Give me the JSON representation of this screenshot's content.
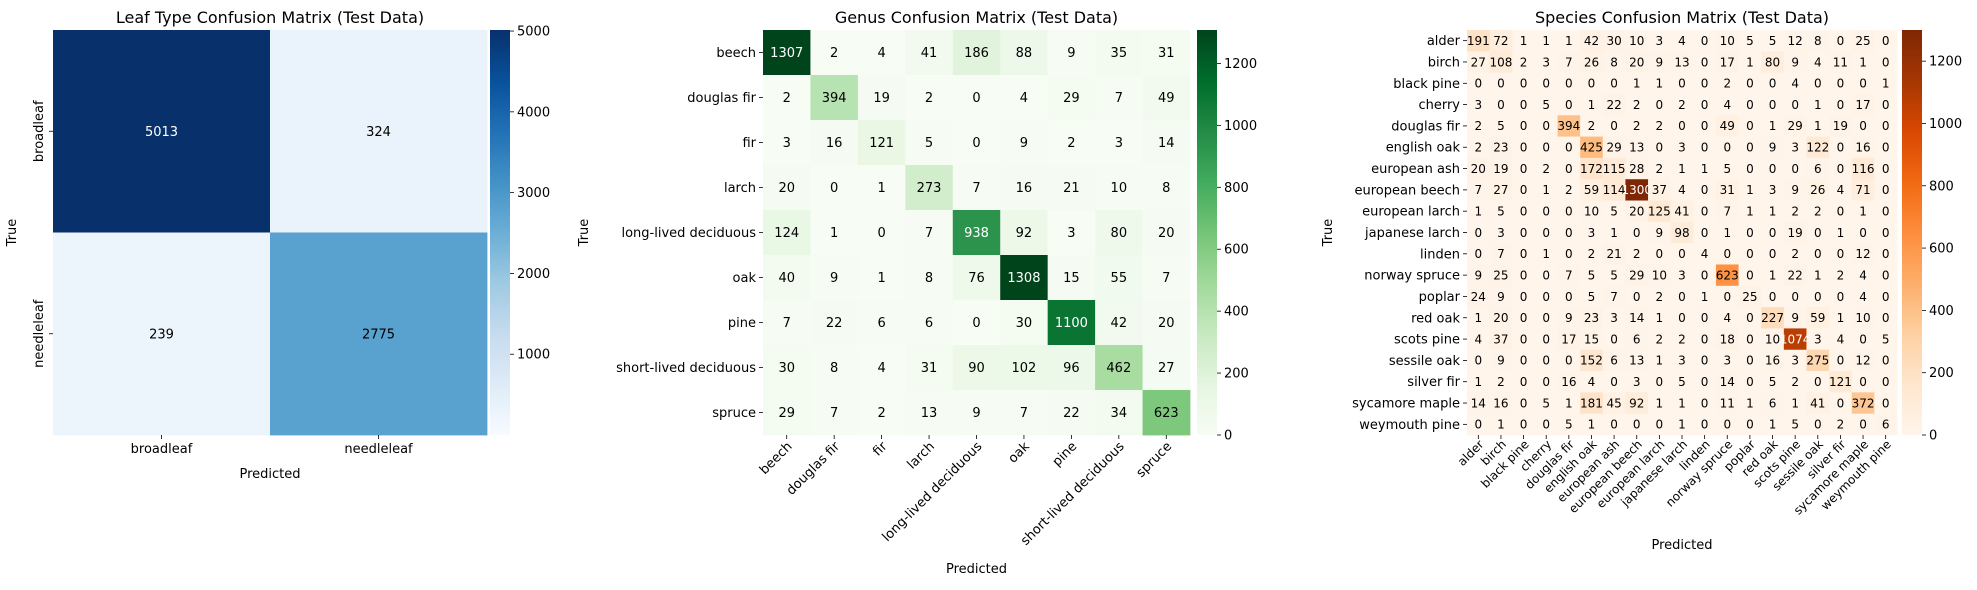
{
  "chart_data": [
    {
      "type": "heatmap",
      "title": "Leaf Type Confusion Matrix (Test Data)",
      "xlabel": "Predicted",
      "ylabel": "True",
      "colormap": "Blues",
      "colors": [
        "#f7fbff",
        "#deebf7",
        "#c6dbef",
        "#9ecae1",
        "#6baed6",
        "#4292c6",
        "#2171b5",
        "#08519c",
        "#08306b"
      ],
      "labels": [
        "broadleaf",
        "needleleaf"
      ],
      "vmin": 0,
      "vmax": 5013,
      "colorbar_ticks": [
        1000,
        2000,
        3000,
        4000,
        5000
      ],
      "matrix": [
        [
          5013,
          324
        ],
        [
          239,
          2775
        ]
      ]
    },
    {
      "type": "heatmap",
      "title": "Genus Confusion Matrix (Test Data)",
      "xlabel": "Predicted",
      "ylabel": "True",
      "colormap": "Greens",
      "colors": [
        "#f7fcf5",
        "#e5f5e0",
        "#c7e9c0",
        "#a1d99b",
        "#74c476",
        "#41ab5d",
        "#238b45",
        "#006d2c",
        "#00441b"
      ],
      "labels": [
        "beech",
        "douglas fir",
        "fir",
        "larch",
        "long-lived deciduous",
        "oak",
        "pine",
        "short-lived deciduous",
        "spruce"
      ],
      "vmin": 0,
      "vmax": 1308,
      "colorbar_ticks": [
        0,
        200,
        400,
        600,
        800,
        1000,
        1200
      ],
      "matrix": [
        [
          1307,
          2,
          4,
          41,
          186,
          88,
          9,
          35,
          31
        ],
        [
          2,
          394,
          19,
          2,
          0,
          4,
          29,
          7,
          49
        ],
        [
          3,
          16,
          121,
          5,
          0,
          9,
          2,
          3,
          14
        ],
        [
          20,
          0,
          1,
          273,
          7,
          16,
          21,
          10,
          8
        ],
        [
          124,
          1,
          0,
          7,
          938,
          92,
          3,
          80,
          20
        ],
        [
          40,
          9,
          1,
          8,
          76,
          1308,
          15,
          55,
          7
        ],
        [
          7,
          22,
          6,
          6,
          0,
          30,
          1100,
          42,
          20
        ],
        [
          30,
          8,
          4,
          31,
          90,
          102,
          96,
          462,
          27
        ],
        [
          29,
          7,
          2,
          13,
          9,
          7,
          22,
          34,
          623
        ]
      ]
    },
    {
      "type": "heatmap",
      "title": "Species Confusion Matrix (Test Data)",
      "xlabel": "Predicted",
      "ylabel": "True",
      "colormap": "Oranges",
      "colors": [
        "#fff5eb",
        "#fee6ce",
        "#fdd0a2",
        "#fdae6b",
        "#fd8d3c",
        "#f16913",
        "#d94801",
        "#a63603",
        "#7f2704"
      ],
      "labels": [
        "alder",
        "birch",
        "black pine",
        "cherry",
        "douglas fir",
        "english oak",
        "european ash",
        "european beech",
        "european larch",
        "japanese larch",
        "linden",
        "norway spruce",
        "poplar",
        "red oak",
        "scots pine",
        "sessile oak",
        "silver fir",
        "sycamore maple",
        "weymouth pine"
      ],
      "vmin": 0,
      "vmax": 1300,
      "colorbar_ticks": [
        0,
        200,
        400,
        600,
        800,
        1000,
        1200
      ],
      "matrix": [
        [
          191,
          72,
          1,
          1,
          1,
          42,
          30,
          10,
          3,
          4,
          0,
          10,
          5,
          5,
          12,
          8,
          0,
          25,
          0
        ],
        [
          27,
          108,
          2,
          3,
          7,
          26,
          8,
          20,
          9,
          13,
          0,
          17,
          1,
          80,
          9,
          4,
          11,
          1,
          0
        ],
        [
          0,
          0,
          0,
          0,
          0,
          0,
          0,
          1,
          1,
          0,
          0,
          2,
          0,
          0,
          4,
          0,
          0,
          0,
          1
        ],
        [
          3,
          0,
          0,
          5,
          0,
          1,
          22,
          2,
          0,
          2,
          0,
          4,
          0,
          0,
          0,
          1,
          0,
          17,
          0
        ],
        [
          2,
          5,
          0,
          0,
          394,
          2,
          0,
          2,
          2,
          0,
          0,
          49,
          0,
          1,
          29,
          1,
          19,
          0,
          0
        ],
        [
          2,
          23,
          0,
          0,
          0,
          425,
          29,
          13,
          0,
          3,
          0,
          0,
          0,
          9,
          3,
          122,
          0,
          16,
          0
        ],
        [
          20,
          19,
          0,
          2,
          0,
          172,
          115,
          28,
          2,
          1,
          1,
          5,
          0,
          0,
          0,
          6,
          0,
          116,
          0
        ],
        [
          7,
          27,
          0,
          1,
          2,
          59,
          114,
          1300,
          37,
          4,
          0,
          31,
          1,
          3,
          9,
          26,
          4,
          71,
          0
        ],
        [
          1,
          5,
          0,
          0,
          0,
          10,
          5,
          20,
          125,
          41,
          0,
          7,
          1,
          1,
          2,
          2,
          0,
          1,
          0
        ],
        [
          0,
          3,
          0,
          0,
          0,
          3,
          1,
          0,
          9,
          98,
          0,
          1,
          0,
          0,
          19,
          0,
          1,
          0,
          0
        ],
        [
          0,
          7,
          0,
          1,
          0,
          2,
          21,
          2,
          0,
          0,
          4,
          0,
          0,
          0,
          2,
          0,
          0,
          12,
          0
        ],
        [
          9,
          25,
          0,
          0,
          7,
          5,
          5,
          29,
          10,
          3,
          0,
          623,
          0,
          1,
          22,
          1,
          2,
          4,
          0
        ],
        [
          24,
          9,
          0,
          0,
          0,
          5,
          7,
          0,
          2,
          0,
          1,
          0,
          25,
          0,
          0,
          0,
          0,
          4,
          0
        ],
        [
          1,
          20,
          0,
          0,
          9,
          23,
          3,
          14,
          1,
          0,
          0,
          4,
          0,
          227,
          9,
          59,
          1,
          10,
          0
        ],
        [
          4,
          37,
          0,
          0,
          17,
          15,
          0,
          6,
          2,
          2,
          0,
          18,
          0,
          10,
          1074,
          3,
          4,
          0,
          5
        ],
        [
          0,
          9,
          0,
          0,
          0,
          152,
          6,
          13,
          1,
          3,
          0,
          3,
          0,
          16,
          3,
          275,
          0,
          12,
          0
        ],
        [
          1,
          2,
          0,
          0,
          16,
          4,
          0,
          3,
          0,
          5,
          0,
          14,
          0,
          5,
          2,
          0,
          121,
          0,
          0
        ],
        [
          14,
          16,
          0,
          5,
          1,
          181,
          45,
          92,
          1,
          1,
          0,
          11,
          1,
          6,
          1,
          41,
          0,
          372,
          0
        ],
        [
          0,
          1,
          0,
          0,
          5,
          1,
          0,
          0,
          0,
          1,
          0,
          0,
          0,
          1,
          5,
          0,
          2,
          0,
          6
        ]
      ]
    }
  ]
}
